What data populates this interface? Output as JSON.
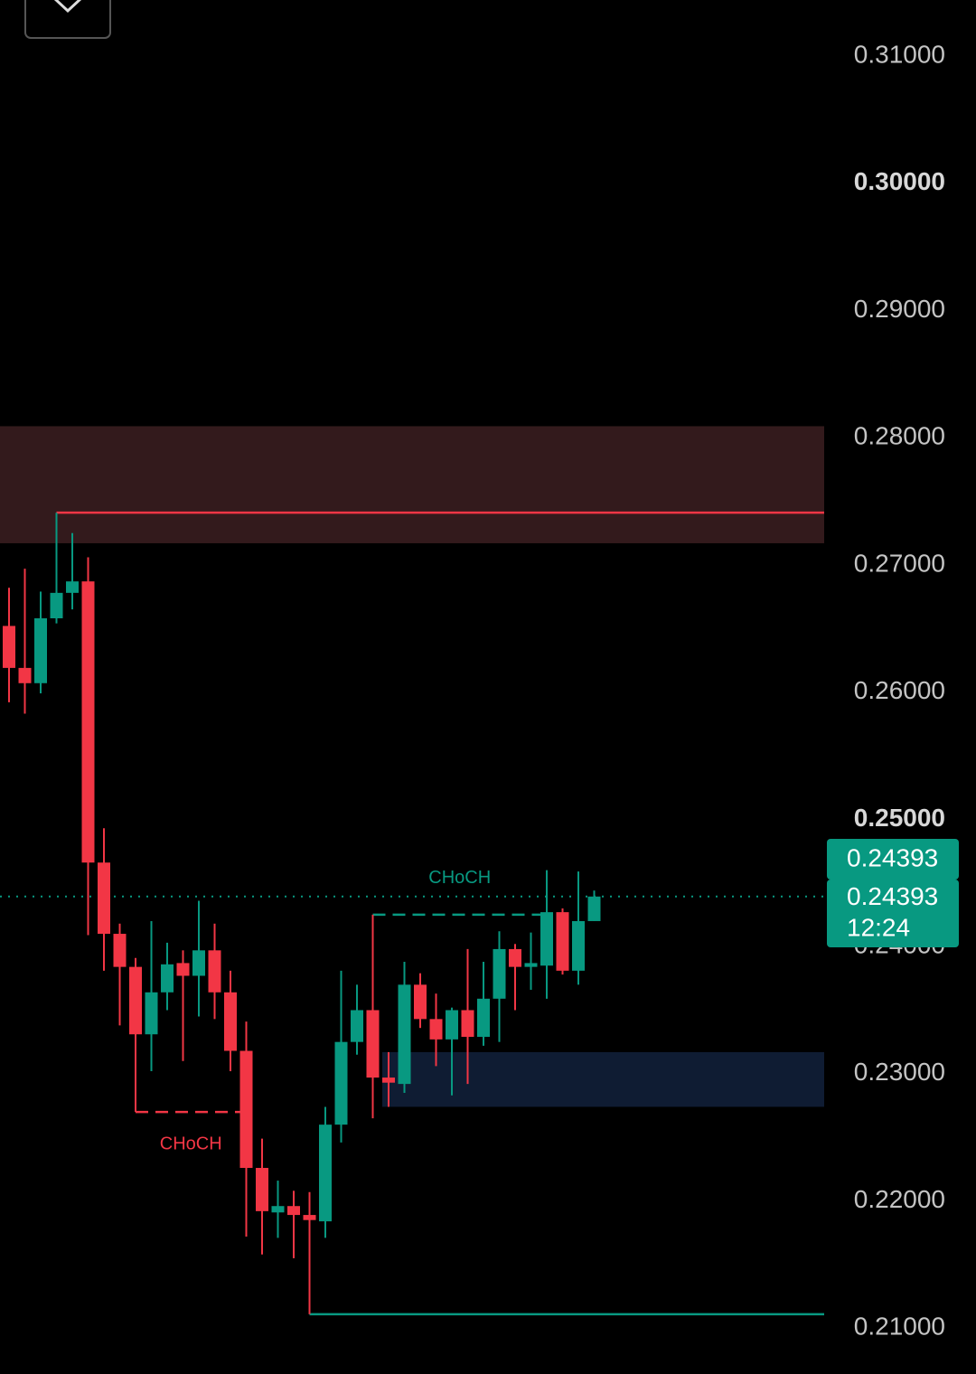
{
  "chart_data": {
    "type": "candlestick",
    "ylim": [
      0.2064,
      0.3144
    ],
    "yticks": [
      {
        "value": 0.31,
        "label": "0.31000"
      },
      {
        "value": 0.3,
        "label": "0.30000",
        "bold": true
      },
      {
        "value": 0.29,
        "label": "0.29000"
      },
      {
        "value": 0.28,
        "label": "0.28000"
      },
      {
        "value": 0.27,
        "label": "0.27000"
      },
      {
        "value": 0.26,
        "label": "0.26000"
      },
      {
        "value": 0.25,
        "label": "0.25000",
        "bold": true
      },
      {
        "value": 0.24,
        "label": "0.24000"
      },
      {
        "value": 0.23,
        "label": "0.23000"
      },
      {
        "value": 0.22,
        "label": "0.22000"
      },
      {
        "value": 0.21,
        "label": "0.21000"
      }
    ],
    "up_color": "#089981",
    "down_color": "#f23645",
    "candles": {
      "open": [
        0.2652,
        0.2619,
        0.2607,
        0.2658,
        0.2678,
        0.2687,
        0.2466,
        0.241,
        0.2384,
        0.2331,
        0.2364,
        0.2387,
        0.2377,
        0.2397,
        0.2364,
        0.2318,
        0.2226,
        0.2191,
        0.2196,
        0.2189,
        0.2184,
        0.226,
        0.2325,
        0.235,
        0.2297,
        0.2292,
        0.237,
        0.2343,
        0.2327,
        0.235,
        0.2329,
        0.2359,
        0.2398,
        0.2384,
        0.2385,
        0.2427,
        0.2381,
        0.242
      ],
      "high": [
        0.2682,
        0.2697,
        0.2679,
        0.2741,
        0.2725,
        0.2706,
        0.2493,
        0.2418,
        0.2391,
        0.242,
        0.2403,
        0.2397,
        0.2436,
        0.2418,
        0.2381,
        0.2341,
        0.2249,
        0.2216,
        0.2208,
        0.2207,
        0.2274,
        0.2381,
        0.237,
        0.2425,
        0.2317,
        0.2388,
        0.2379,
        0.2363,
        0.2352,
        0.2398,
        0.2388,
        0.2412,
        0.2402,
        0.2411,
        0.246,
        0.243,
        0.2459,
        0.2444
      ],
      "low": [
        0.2592,
        0.2583,
        0.2599,
        0.2654,
        0.2665,
        0.2409,
        0.2381,
        0.2338,
        0.227,
        0.2302,
        0.235,
        0.231,
        0.2345,
        0.2343,
        0.2302,
        0.2172,
        0.2158,
        0.2171,
        0.2155,
        0.2111,
        0.2171,
        0.2246,
        0.2315,
        0.2265,
        0.2274,
        0.2285,
        0.2336,
        0.2306,
        0.2283,
        0.2292,
        0.2322,
        0.2325,
        0.235,
        0.2366,
        0.2359,
        0.2378,
        0.237,
        0.242
      ],
      "close": [
        0.2619,
        0.2607,
        0.2658,
        0.2678,
        0.2687,
        0.2466,
        0.241,
        0.2384,
        0.2331,
        0.2364,
        0.2386,
        0.2377,
        0.2397,
        0.2364,
        0.2318,
        0.2226,
        0.2192,
        0.2196,
        0.2189,
        0.2185,
        0.226,
        0.2325,
        0.235,
        0.2297,
        0.2293,
        0.237,
        0.2343,
        0.2327,
        0.235,
        0.2329,
        0.2359,
        0.2398,
        0.2384,
        0.2387,
        0.2427,
        0.2381,
        0.242,
        0.24393
      ]
    },
    "zones": [
      {
        "top": 0.2809,
        "bottom": 0.2717,
        "color": "#331a1c",
        "start_index": 0
      },
      {
        "top": 0.2317,
        "bottom": 0.2274,
        "color": "#0f1c33",
        "start_index": 24
      }
    ],
    "levels": [
      {
        "value": 0.2741,
        "color": "#f23645",
        "start_index": 3
      },
      {
        "value": 0.2111,
        "color": "#089981",
        "start_index": 19
      }
    ],
    "choch": [
      {
        "label": "CHoCH",
        "value": 0.227,
        "color": "#f23645",
        "start_index": 8,
        "end_index": 15,
        "label_side": "below"
      },
      {
        "label": "CHoCH",
        "value": 0.2425,
        "color": "#089981",
        "start_index": 23,
        "end_index": 34,
        "label_side": "above"
      }
    ],
    "last_price": {
      "value": 0.24393,
      "label": "0.24393"
    },
    "price_tag": {
      "label": "0.24393"
    },
    "countdown": "12:24"
  }
}
